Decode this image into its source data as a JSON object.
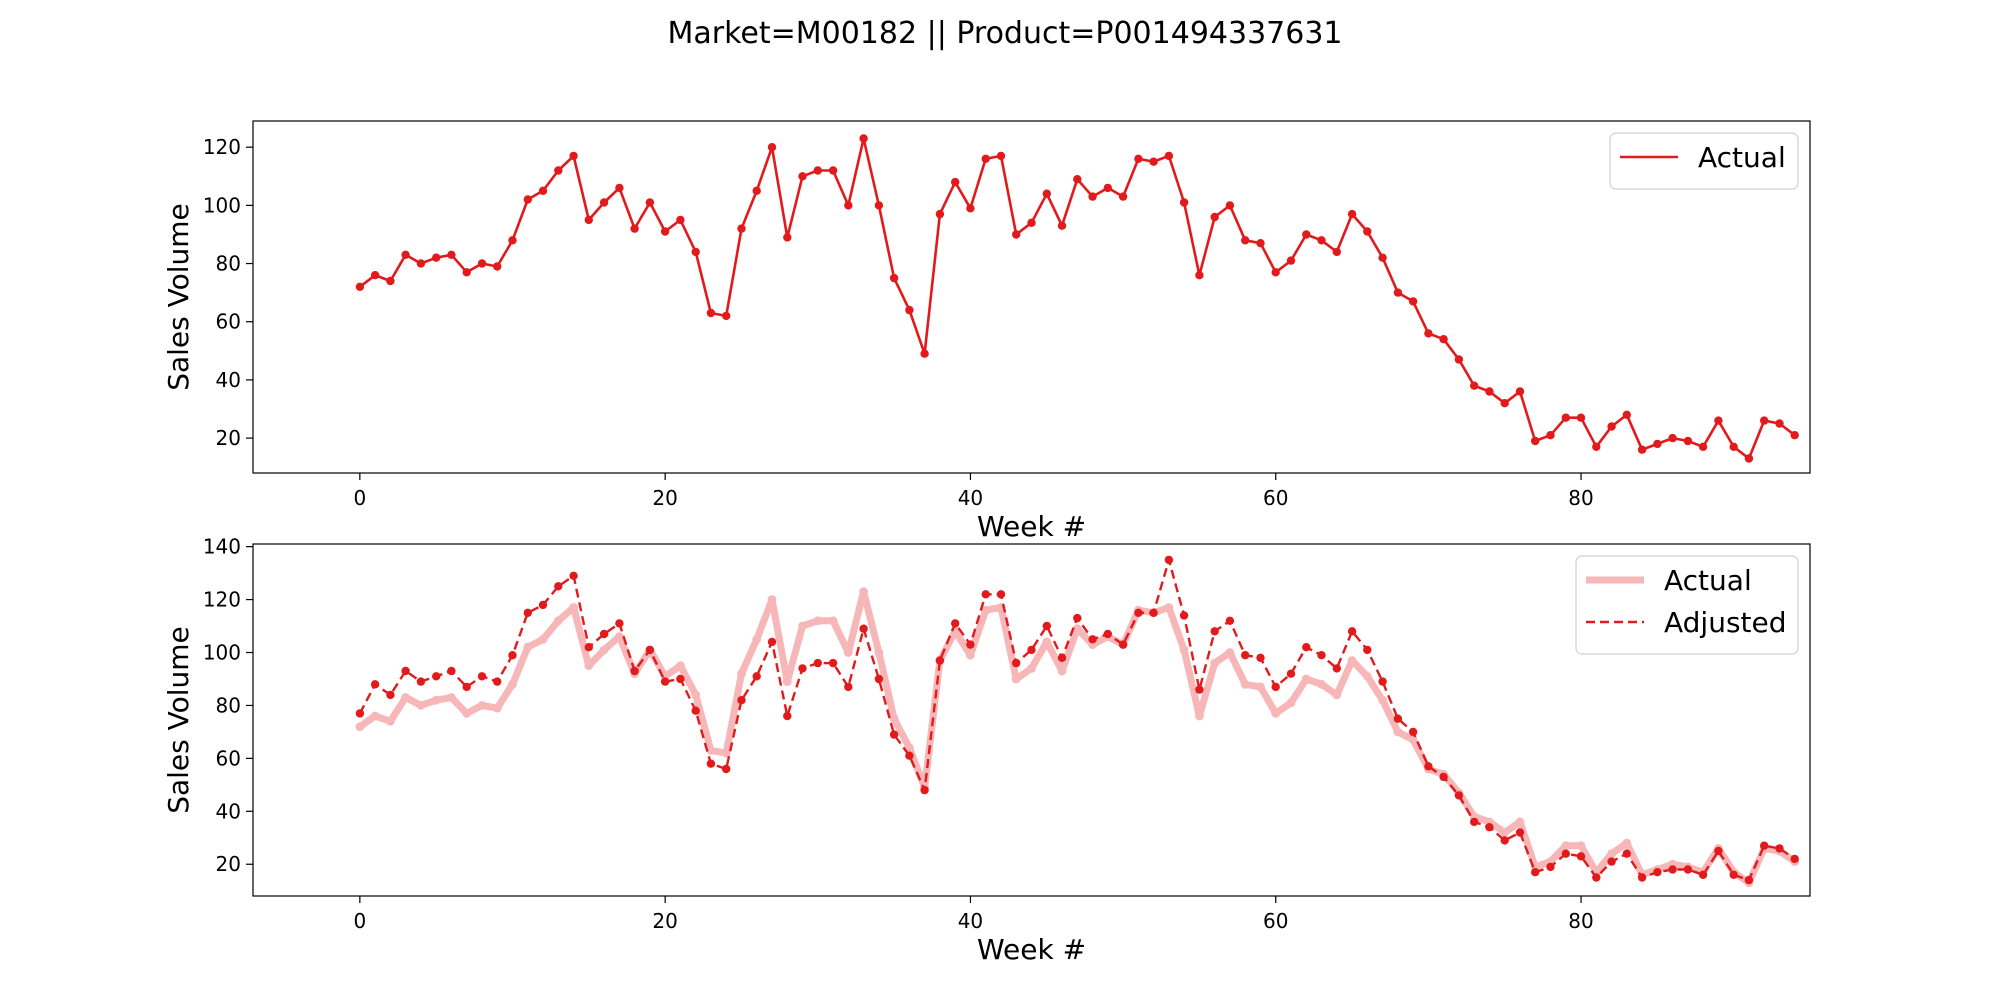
{
  "figure": {
    "title": "Market=M00182 || Product=P001494337631"
  },
  "chart_data": [
    {
      "type": "line",
      "xlabel": "Week #",
      "ylabel": "Sales Volume",
      "xlim": [
        -7,
        95
      ],
      "ylim": [
        8,
        129
      ],
      "xticks": [
        0,
        20,
        40,
        60,
        80
      ],
      "yticks": [
        20,
        40,
        60,
        80,
        100,
        120
      ],
      "grid": false,
      "legend_position": "upper right",
      "series": [
        {
          "name": "Actual",
          "color": "#e31a1c",
          "style": "solid-with-markers",
          "values": [
            72,
            76,
            74,
            83,
            80,
            82,
            83,
            77,
            80,
            79,
            88,
            102,
            105,
            112,
            117,
            95,
            101,
            106,
            92,
            101,
            91,
            95,
            84,
            63,
            62,
            92,
            105,
            120,
            89,
            110,
            112,
            112,
            100,
            123,
            100,
            75,
            64,
            49,
            97,
            108,
            99,
            116,
            117,
            90,
            94,
            104,
            93,
            109,
            103,
            106,
            103,
            116,
            115,
            117,
            101,
            76,
            96,
            100,
            88,
            87,
            77,
            81,
            90,
            88,
            84,
            97,
            91,
            82,
            70,
            67,
            56,
            54,
            47,
            38,
            36,
            32,
            36,
            19,
            21,
            27,
            27,
            17,
            24,
            28,
            16,
            18,
            20,
            19,
            17,
            26,
            17,
            13,
            26,
            25,
            21
          ]
        }
      ]
    },
    {
      "type": "line",
      "xlabel": "Week #",
      "ylabel": "Sales Volume",
      "xlim": [
        -7,
        95
      ],
      "ylim": [
        8,
        141
      ],
      "xticks": [
        0,
        20,
        40,
        60,
        80
      ],
      "yticks": [
        20,
        40,
        60,
        80,
        100,
        120,
        140
      ],
      "grid": false,
      "legend_position": "upper right",
      "series": [
        {
          "name": "Actual",
          "color": "#f7b6b7",
          "style": "thick-faded-with-markers",
          "values": [
            72,
            76,
            74,
            83,
            80,
            82,
            83,
            77,
            80,
            79,
            88,
            102,
            105,
            112,
            117,
            95,
            101,
            106,
            92,
            101,
            91,
            95,
            84,
            63,
            62,
            92,
            105,
            120,
            89,
            110,
            112,
            112,
            100,
            123,
            100,
            75,
            64,
            49,
            97,
            108,
            99,
            116,
            117,
            90,
            94,
            104,
            93,
            109,
            103,
            106,
            103,
            116,
            115,
            117,
            101,
            76,
            96,
            100,
            88,
            87,
            77,
            81,
            90,
            88,
            84,
            97,
            91,
            82,
            70,
            67,
            56,
            54,
            47,
            38,
            36,
            32,
            36,
            19,
            21,
            27,
            27,
            17,
            24,
            28,
            16,
            18,
            20,
            19,
            17,
            26,
            17,
            13,
            26,
            25,
            21
          ]
        },
        {
          "name": "Adjusted",
          "color": "#e31a1c",
          "style": "dashed-with-markers",
          "values": [
            77,
            88,
            84,
            93,
            89,
            91,
            93,
            87,
            91,
            89,
            99,
            115,
            118,
            125,
            129,
            102,
            107,
            111,
            93,
            101,
            89,
            90,
            78,
            58,
            56,
            82,
            91,
            104,
            76,
            94,
            96,
            96,
            87,
            109,
            90,
            69,
            61,
            48,
            97,
            111,
            103,
            122,
            122,
            96,
            101,
            110,
            98,
            113,
            105,
            107,
            103,
            115,
            115,
            135,
            114,
            86,
            108,
            112,
            99,
            98,
            87,
            92,
            102,
            99,
            94,
            108,
            101,
            89,
            75,
            70,
            57,
            53,
            46,
            36,
            34,
            29,
            32,
            17,
            19,
            24,
            23,
            15,
            21,
            24,
            15,
            17,
            18,
            18,
            16,
            25,
            16,
            14,
            27,
            26,
            22
          ]
        }
      ]
    }
  ]
}
